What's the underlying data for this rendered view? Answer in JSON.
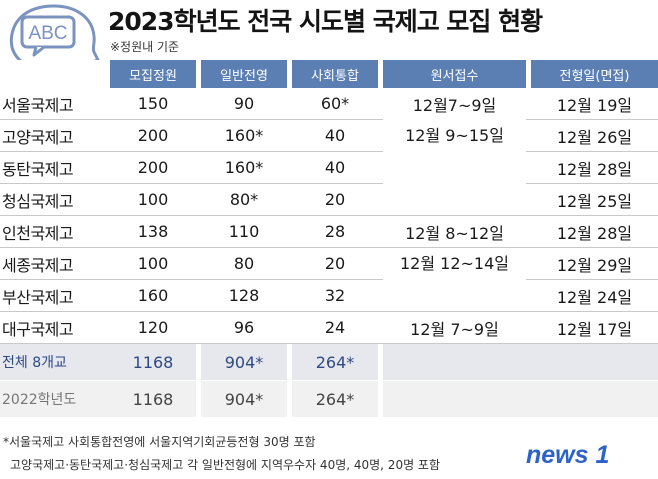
{
  "title": "2023학년도 전국 시도별 국제고 모집 현황",
  "subtitle": "※정원내 기준",
  "logo_text": "ABC",
  "brand_name": "news 1",
  "headers": [
    "모집정원",
    "일반전영",
    "사회통합",
    "원서접수",
    "전형일(면접)"
  ],
  "rows": [
    {
      "name": "서울국제고",
      "quota": "150",
      "general": "90",
      "social": "60*",
      "interview": "12월 19일"
    },
    {
      "name": "고양국제고",
      "quota": "200",
      "general": "160*",
      "social": "40",
      "interview": "12월 26일"
    },
    {
      "name": "동탄국제고",
      "quota": "200",
      "general": "160*",
      "social": "40",
      "interview": "12월 28일"
    },
    {
      "name": "청심국제고",
      "quota": "100",
      "general": "80*",
      "social": "20",
      "interview": "12월 25일"
    },
    {
      "name": "인천국제고",
      "quota": "138",
      "general": "110",
      "social": "28",
      "interview": "12월 28일"
    },
    {
      "name": "세종국제고",
      "quota": "100",
      "general": "80",
      "social": "20",
      "interview": "12월 29일"
    },
    {
      "name": "부산국제고",
      "quota": "160",
      "general": "128",
      "social": "32",
      "interview": "12월 24일"
    },
    {
      "name": "대구국제고",
      "quota": "120",
      "general": "96",
      "social": "24",
      "interview": "12월 17일"
    }
  ],
  "application_dates": {
    "seoul": "12월7~9일",
    "goyang_group": "12월 9~15일",
    "incheon": "12월 8~12일",
    "sejong_group": "12월 12~14일",
    "daegu": "12월 7~9일"
  },
  "total": {
    "name": "전체 8개교",
    "quota": "1168",
    "general": "904*",
    "social": "264*"
  },
  "prev": {
    "name": "2022학년도",
    "quota": "1168",
    "general": "904*",
    "social": "264*"
  },
  "notes": [
    "*서울국제고 사회통합전영에 서울지역기회균등전형 30명 포함",
    "고양국제고·동탄국제고·청심국제고 각 일반전형에 지역우수자 40명, 40명, 20명 포함"
  ],
  "colors": {
    "header": "#5b7fb3",
    "total_bg": "#e7e7ee",
    "total_text": "#2d4a85",
    "prev_bg": "#f1f1f1",
    "brand": "#2d63c8"
  }
}
